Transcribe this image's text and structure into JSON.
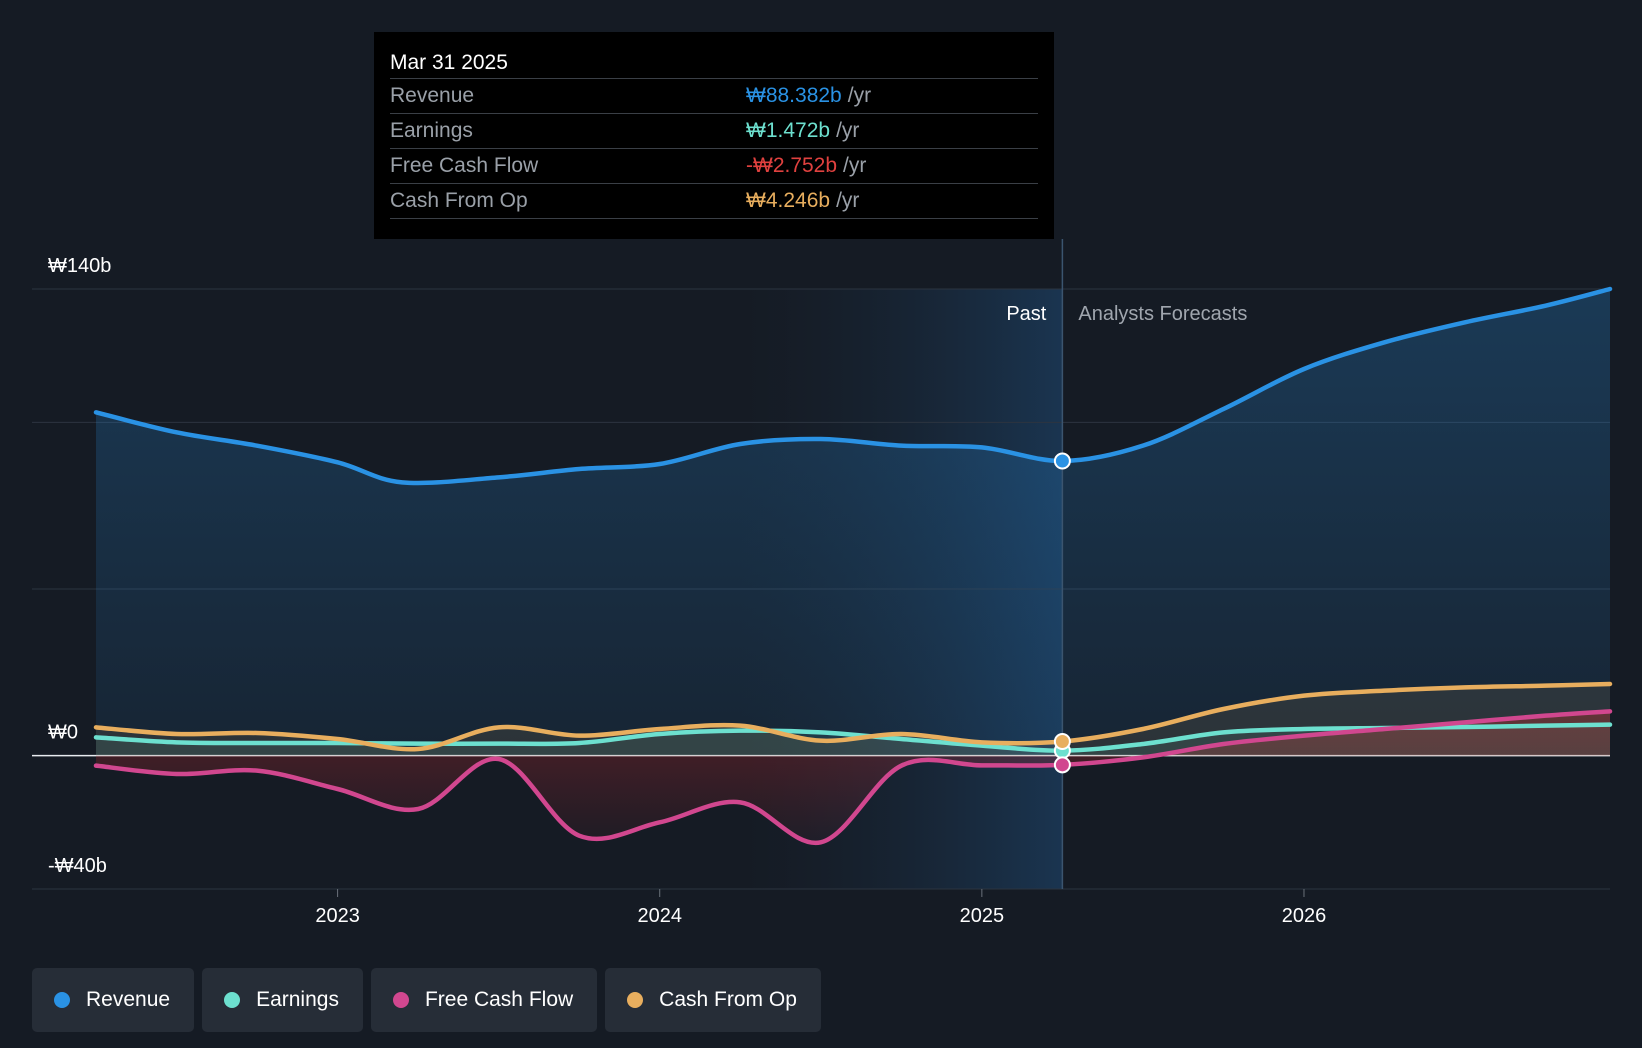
{
  "chart_data": {
    "type": "line",
    "currency_symbol": "₩",
    "y_axis": {
      "min": -40,
      "max": 140,
      "unit": "b",
      "tick_labels": [
        {
          "value": 140,
          "label": "₩140b"
        },
        {
          "value": 0,
          "label": "₩0"
        },
        {
          "value": -40,
          "label": "-₩40b"
        }
      ],
      "gridlines": [
        140,
        100,
        50,
        0,
        -40
      ]
    },
    "x_axis": {
      "min": 2022.25,
      "max": 2026.95,
      "ticks": [
        {
          "value": 2023,
          "label": "2023"
        },
        {
          "value": 2024,
          "label": "2024"
        },
        {
          "value": 2025,
          "label": "2025"
        },
        {
          "value": 2026,
          "label": "2026"
        }
      ]
    },
    "highlight_start": 2024.25,
    "divider": {
      "x": 2025.25,
      "past_label": "Past",
      "future_label": "Analysts Forecasts"
    },
    "series": [
      {
        "name": "Revenue",
        "color": "#2a92e4",
        "area": true,
        "points": [
          [
            2022.25,
            103
          ],
          [
            2022.5,
            97
          ],
          [
            2022.75,
            93
          ],
          [
            2023.0,
            88
          ],
          [
            2023.2,
            82
          ],
          [
            2023.5,
            83.5
          ],
          [
            2023.75,
            86
          ],
          [
            2024.0,
            87.5
          ],
          [
            2024.25,
            93.5
          ],
          [
            2024.5,
            95
          ],
          [
            2024.75,
            93
          ],
          [
            2025.0,
            92.5
          ],
          [
            2025.25,
            88.4
          ],
          [
            2025.5,
            93
          ],
          [
            2025.75,
            104
          ],
          [
            2026.0,
            116
          ],
          [
            2026.25,
            124
          ],
          [
            2026.5,
            130
          ],
          [
            2026.75,
            135
          ],
          [
            2026.95,
            140
          ]
        ]
      },
      {
        "name": "Earnings",
        "color": "#6de0cf",
        "area": true,
        "points": [
          [
            2022.25,
            5.5
          ],
          [
            2022.5,
            4
          ],
          [
            2022.75,
            3.8
          ],
          [
            2023.0,
            3.8
          ],
          [
            2023.25,
            3.6
          ],
          [
            2023.5,
            3.6
          ],
          [
            2023.75,
            3.8
          ],
          [
            2024.0,
            6.5
          ],
          [
            2024.25,
            7.5
          ],
          [
            2024.5,
            7
          ],
          [
            2024.75,
            5
          ],
          [
            2025.0,
            3
          ],
          [
            2025.25,
            1.5
          ],
          [
            2025.5,
            3.5
          ],
          [
            2025.75,
            7
          ],
          [
            2026.0,
            8
          ],
          [
            2026.25,
            8.3
          ],
          [
            2026.5,
            8.6
          ],
          [
            2026.75,
            9
          ],
          [
            2026.95,
            9.3
          ]
        ]
      },
      {
        "name": "Free Cash Flow",
        "color": "#d1478f",
        "area": true,
        "points": [
          [
            2022.25,
            -3
          ],
          [
            2022.5,
            -5.5
          ],
          [
            2022.75,
            -4.5
          ],
          [
            2023.0,
            -10
          ],
          [
            2023.25,
            -16
          ],
          [
            2023.5,
            -1
          ],
          [
            2023.75,
            -24
          ],
          [
            2024.0,
            -20
          ],
          [
            2024.25,
            -14
          ],
          [
            2024.5,
            -26
          ],
          [
            2024.75,
            -3
          ],
          [
            2025.0,
            -2.9
          ],
          [
            2025.25,
            -2.75
          ],
          [
            2025.5,
            -0.5
          ],
          [
            2025.75,
            3.5
          ],
          [
            2026.0,
            6
          ],
          [
            2026.25,
            8
          ],
          [
            2026.5,
            10
          ],
          [
            2026.75,
            12
          ],
          [
            2026.95,
            13.3
          ]
        ]
      },
      {
        "name": "Cash From Op",
        "color": "#e8ae5e",
        "area": true,
        "points": [
          [
            2022.25,
            8.5
          ],
          [
            2022.5,
            6.5
          ],
          [
            2022.75,
            6.8
          ],
          [
            2023.0,
            5
          ],
          [
            2023.25,
            2
          ],
          [
            2023.5,
            8.5
          ],
          [
            2023.75,
            6
          ],
          [
            2024.0,
            8
          ],
          [
            2024.25,
            9
          ],
          [
            2024.5,
            4.5
          ],
          [
            2024.75,
            6.5
          ],
          [
            2025.0,
            4
          ],
          [
            2025.25,
            4.25
          ],
          [
            2025.5,
            8
          ],
          [
            2025.75,
            14
          ],
          [
            2026.0,
            18
          ],
          [
            2026.25,
            19.5
          ],
          [
            2026.5,
            20.5
          ],
          [
            2026.75,
            21
          ],
          [
            2026.95,
            21.5
          ]
        ]
      }
    ],
    "selected_x": 2025.25
  },
  "tooltip": {
    "date": "Mar 31 2025",
    "rows": [
      {
        "name": "Revenue",
        "value": "₩88.382b",
        "unit": "/yr",
        "color": "#2a92e4"
      },
      {
        "name": "Earnings",
        "value": "₩1.472b",
        "unit": "/yr",
        "color": "#6de0cf"
      },
      {
        "name": "Free Cash Flow",
        "value": "-₩2.752b",
        "unit": "/yr",
        "color": "#e0413f"
      },
      {
        "name": "Cash From Op",
        "value": "₩4.246b",
        "unit": "/yr",
        "color": "#e8ae5e"
      }
    ]
  },
  "legend": {
    "items": [
      {
        "label": "Revenue",
        "color": "#2a92e4"
      },
      {
        "label": "Earnings",
        "color": "#6de0cf"
      },
      {
        "label": "Free Cash Flow",
        "color": "#d1478f"
      },
      {
        "label": "Cash From Op",
        "color": "#e8ae5e"
      }
    ]
  }
}
